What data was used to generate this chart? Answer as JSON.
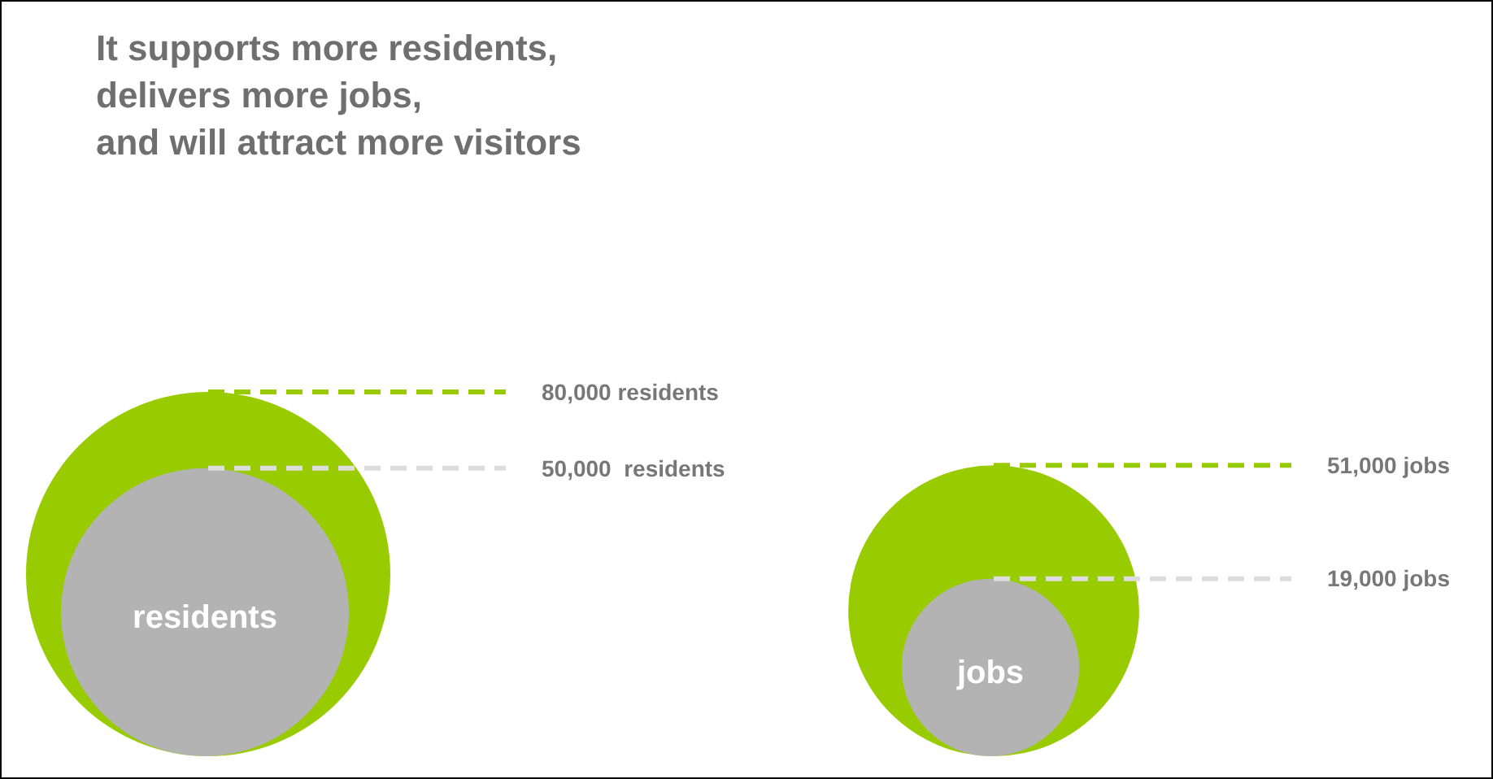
{
  "chart_data": {
    "type": "other",
    "title": "It supports more residents,\ndelivers more jobs,\nand will attract more visitors",
    "categories": [
      "residents",
      "jobs"
    ],
    "series": [
      {
        "color": "#99cc00",
        "values": [
          80000,
          51000
        ],
        "value_labels": [
          "80,000 residents",
          "51,000 jobs"
        ]
      },
      {
        "color": "#b3b3b3",
        "values": [
          50000,
          19000
        ],
        "value_labels": [
          "50,000  residents",
          "19,000 jobs"
        ]
      }
    ]
  }
}
